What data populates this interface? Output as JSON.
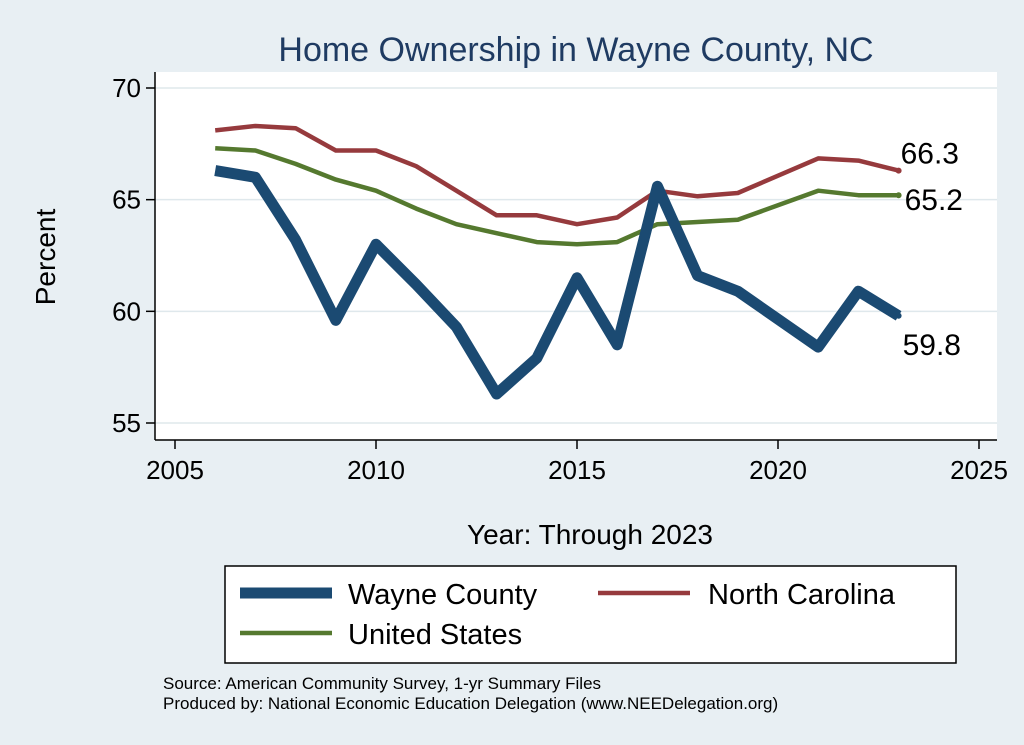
{
  "chart_data": {
    "type": "line",
    "title": "Home Ownership in Wayne County, NC",
    "xlabel": "Year: Through 2023",
    "ylabel": "Percent",
    "xlim": [
      2005,
      2025
    ],
    "ylim": [
      55,
      70
    ],
    "xticks": [
      2005,
      2010,
      2015,
      2020,
      2025
    ],
    "yticks": [
      55,
      60,
      65,
      70
    ],
    "grid": true,
    "series": [
      {
        "name": "Wayne County",
        "color": "#1b4a72",
        "x": [
          2006,
          2007,
          2008,
          2009,
          2010,
          2011,
          2012,
          2013,
          2014,
          2015,
          2016,
          2017,
          2018,
          2019,
          2021,
          2022,
          2023
        ],
        "values": [
          66.3,
          66.0,
          63.2,
          59.6,
          63.0,
          61.2,
          59.3,
          56.3,
          57.9,
          61.5,
          58.5,
          65.6,
          61.6,
          60.9,
          58.4,
          60.9,
          59.8
        ],
        "end_label": "59.8"
      },
      {
        "name": "North Carolina",
        "color": "#963a3d",
        "x": [
          2006,
          2007,
          2008,
          2009,
          2010,
          2011,
          2012,
          2013,
          2014,
          2015,
          2016,
          2017,
          2018,
          2019,
          2021,
          2022,
          2023
        ],
        "values": [
          68.1,
          68.3,
          68.2,
          67.2,
          67.2,
          66.5,
          65.4,
          64.3,
          64.3,
          63.9,
          64.2,
          65.4,
          65.15,
          65.3,
          66.85,
          66.75,
          66.3
        ],
        "end_label": "66.3"
      },
      {
        "name": "United States",
        "color": "#55792f",
        "x": [
          2006,
          2007,
          2008,
          2009,
          2010,
          2011,
          2012,
          2013,
          2014,
          2015,
          2016,
          2017,
          2018,
          2019,
          2021,
          2022,
          2023
        ],
        "values": [
          67.3,
          67.2,
          66.6,
          65.9,
          65.4,
          64.6,
          63.9,
          63.5,
          63.1,
          63.0,
          63.1,
          63.9,
          64.0,
          64.1,
          65.4,
          65.2,
          65.2
        ],
        "end_label": "65.2"
      }
    ],
    "legend": {
      "placement": "bottom",
      "entries": [
        "Wayne County",
        "North Carolina",
        "United States"
      ]
    }
  },
  "notes": {
    "source": "Source: American Community Survey, 1-yr Summary Files",
    "produced": "Produced by: National Economic Education Delegation (www.NEEDelegation.org)"
  }
}
